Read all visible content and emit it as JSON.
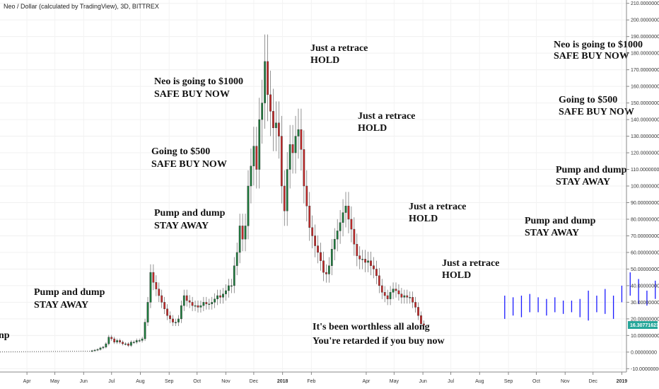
{
  "header": {
    "title": "Neo / Dollar (calculated by TradingView), 3D, BITTREX"
  },
  "price_tag": {
    "value": "16.30771623",
    "color": "#26a69a"
  },
  "colors": {
    "up": "#1b7a3b",
    "down": "#c62828",
    "projection": "#1a1aff",
    "dotted": "#555555"
  },
  "annotations": [
    {
      "lines": [
        "np"
      ]
    },
    {
      "lines": [
        "Pump and dump",
        "STAY AWAY"
      ]
    },
    {
      "lines": [
        "Neo is going to $1000",
        "SAFE BUY NOW"
      ]
    },
    {
      "lines": [
        "Going to $500",
        "SAFE BUY NOW"
      ]
    },
    {
      "lines": [
        "Pump and dump",
        "STAY AWAY"
      ]
    },
    {
      "lines": [
        "Just a retrace",
        "HOLD"
      ]
    },
    {
      "lines": [
        "Just a retrace",
        "HOLD"
      ]
    },
    {
      "lines": [
        "Just a retrace",
        "HOLD"
      ]
    },
    {
      "lines": [
        "Just a retrace",
        "HOLD"
      ]
    },
    {
      "lines": [
        "It's been worthless all along"
      ]
    },
    {
      "lines": [
        "You're retarded if you buy now"
      ]
    },
    {
      "lines": [
        "Neo is going to $1000",
        "SAFE BUY NOW"
      ]
    },
    {
      "lines": [
        "Going to $500",
        "SAFE BUY NOW"
      ]
    },
    {
      "lines": [
        "Pump and dump",
        "STAY AWAY"
      ]
    },
    {
      "lines": [
        "Pump and dump",
        "STAY AWAY"
      ]
    }
  ],
  "chart_data": {
    "type": "candlestick",
    "title": "Neo / Dollar (calculated by TradingView), 3D, BITTREX",
    "ylim": [
      -12,
      212
    ],
    "y_ticks": [
      "-10.00000000",
      "0.00000000",
      "10.00000000",
      "20.00000000",
      "30.00000000",
      "40.00000000",
      "50.00000000",
      "60.00000000",
      "70.00000000",
      "80.00000000",
      "90.00000000",
      "100.00000000",
      "110.00000000",
      "120.00000000",
      "130.00000000",
      "140.00000000",
      "150.00000000",
      "160.00000000",
      "170.00000000",
      "180.00000000",
      "190.00000000",
      "200.00000000",
      "210.00000000"
    ],
    "y_tick_values": [
      -10,
      0,
      10,
      20,
      30,
      40,
      50,
      60,
      70,
      80,
      90,
      100,
      110,
      120,
      130,
      140,
      150,
      160,
      170,
      180,
      190,
      200,
      210
    ],
    "x_ticks": [
      "Apr",
      "May",
      "Jun",
      "Jul",
      "Aug",
      "Sep",
      "Oct",
      "Nov",
      "Dec",
      "2018",
      "Feb",
      "Apr",
      "May",
      "Jun",
      "Jul",
      "Aug",
      "Sep",
      "Oct",
      "Nov",
      "Dec",
      "2019"
    ],
    "x_tick_dates": [
      "2017-04-01",
      "2017-05-01",
      "2017-06-01",
      "2017-07-01",
      "2017-08-01",
      "2017-09-01",
      "2017-10-01",
      "2017-11-01",
      "2017-12-01",
      "2018-01-01",
      "2018-02-01",
      "2018-04-01",
      "2018-05-01",
      "2018-06-01",
      "2018-07-01",
      "2018-08-01",
      "2018-09-01",
      "2018-10-01",
      "2018-11-01",
      "2018-12-01",
      "2019-01-01"
    ],
    "x_range": [
      "2017-03-03",
      "2019-01-06"
    ],
    "last_price": 16.30771623,
    "series": [
      {
        "name": "",
        "style": "dotted",
        "x": [
          "2017-03-03",
          "2017-06-10"
        ],
        "y": [
          0.1,
          0.6
        ]
      },
      {
        "name": "",
        "style": "candles",
        "x_start": "2017-06-10",
        "step_days": 3,
        "closes": [
          0.8,
          1.2,
          1.6,
          2.5,
          3,
          5,
          9,
          8,
          6,
          7,
          6,
          5,
          5,
          4,
          6,
          6,
          7,
          7,
          8,
          18,
          30,
          48,
          42,
          38,
          34,
          30,
          26,
          22,
          20,
          18,
          18,
          20,
          28,
          34,
          31,
          30,
          28,
          28,
          27,
          28,
          30,
          29,
          29,
          30,
          32,
          34,
          33,
          35,
          37,
          40,
          40,
          52,
          60,
          76,
          68,
          76,
          100,
          112,
          124,
          110,
          140,
          150,
          175,
          155,
          145,
          135,
          138,
          130,
          100,
          85,
          110,
          125,
          120,
          130,
          134,
          122,
          100,
          88,
          75,
          70,
          64,
          60,
          55,
          48,
          47,
          52,
          62,
          68,
          73,
          78,
          84,
          88,
          80,
          74,
          65,
          58,
          56,
          56,
          54,
          55,
          52,
          50,
          46,
          40,
          36,
          34,
          32,
          36,
          38,
          37,
          35,
          33,
          34,
          33,
          33,
          30,
          27,
          22,
          17,
          16.3
        ],
        "up_color": "#1b7a3b",
        "down_color": "#c62828"
      },
      {
        "name": "",
        "style": "projection",
        "x_start": "2018-08-28",
        "step_days": 9,
        "ranges": [
          [
            20,
            34
          ],
          [
            22,
            33
          ],
          [
            21,
            34
          ],
          [
            24,
            35
          ],
          [
            24,
            33
          ],
          [
            22,
            32
          ],
          [
            24,
            33
          ],
          [
            23,
            31
          ],
          [
            24,
            31
          ],
          [
            21,
            32
          ],
          [
            19,
            37
          ],
          [
            24,
            34
          ],
          [
            23,
            38
          ],
          [
            20,
            34
          ],
          [
            30,
            40
          ],
          [
            34,
            48
          ],
          [
            29,
            44
          ],
          [
            28,
            37
          ],
          [
            32,
            43
          ],
          [
            25,
            41
          ],
          [
            29,
            44
          ],
          [
            22,
            44
          ]
        ],
        "color": "#1a1aff"
      }
    ]
  }
}
